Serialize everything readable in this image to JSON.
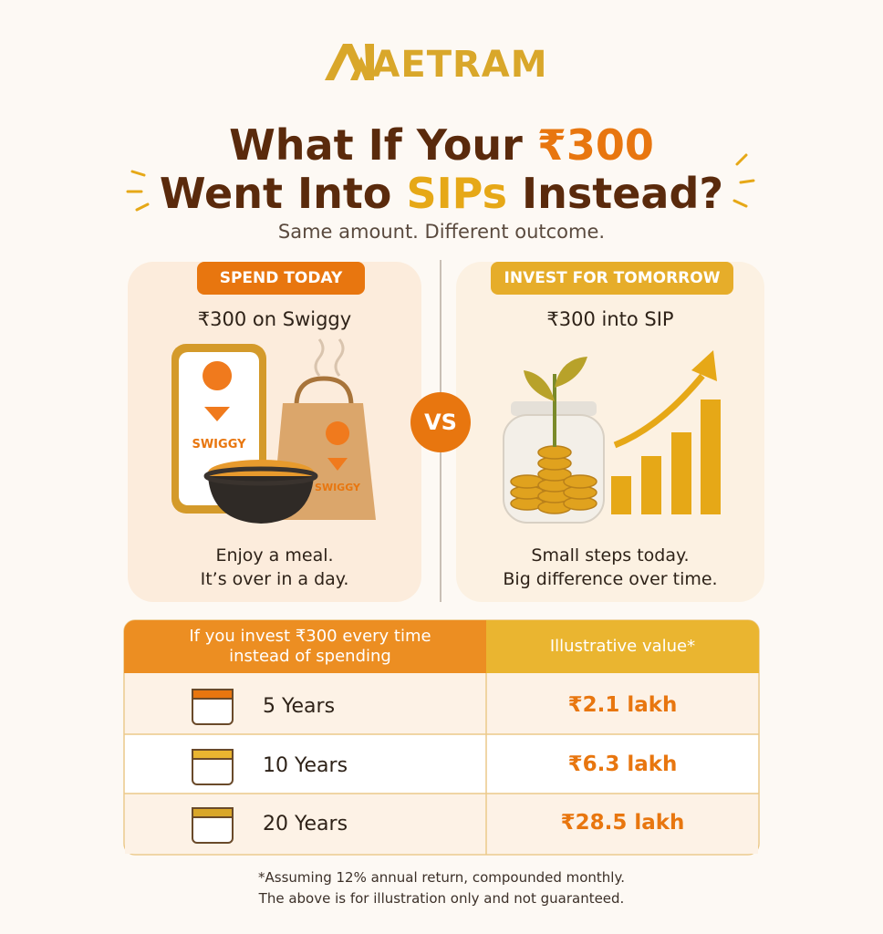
{
  "brand": "AETRAM",
  "headline": {
    "line1": "What If Your",
    "amount": "₹300",
    "line2_start": "Went Into",
    "highlight": "SIPs",
    "line2_end": "Instead?"
  },
  "subtitle": "Same amount. Different outcome.",
  "spend": {
    "badge": "SPEND TODAY",
    "heading": "₹300 on Swiggy",
    "brand_mark": "SWIGGY",
    "caption": [
      "Enjoy a meal.",
      "It’s over in a day."
    ]
  },
  "vs": "VS",
  "invest": {
    "badge": "INVEST FOR TOMORROW",
    "heading": "₹300 into SIP",
    "caption": [
      "Small steps today.",
      "Big difference over time."
    ]
  },
  "table": {
    "headers": [
      "If you invest ₹300 every time instead of spending",
      "Illustrative value*"
    ],
    "rows": [
      [
        "5 Years",
        "₹2.1 lakh"
      ],
      [
        "10 Years",
        "₹6.3 lakh"
      ],
      [
        "20 Years",
        "₹28.5 lakh"
      ]
    ]
  },
  "footnote": [
    "*Assuming 12% annual return, compounded monthly.",
    "The above is for illustration only and not guaranteed."
  ]
}
